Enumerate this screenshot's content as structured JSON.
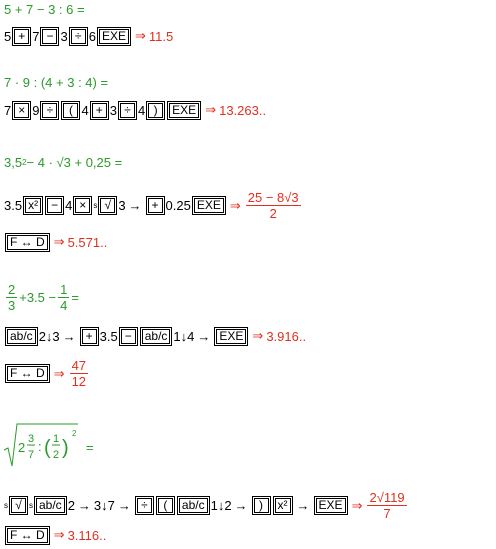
{
  "ex1": {
    "expr": "5 + 7 − 3 : 6 =",
    "keys": [
      "5",
      "+",
      "7",
      "−",
      "3",
      "÷",
      "6",
      "EXE"
    ],
    "result": "11.5"
  },
  "ex2": {
    "expr": "7 · 9 : (4 + 3 : 4) =",
    "keys": [
      "7",
      "×",
      "9",
      "÷",
      "(",
      "4",
      "+",
      "3",
      "÷",
      "4",
      ")",
      "EXE"
    ],
    "result": "13.263.."
  },
  "ex3": {
    "expr_a": "3,5",
    "expr_b": " − 4 · √3 + 0,25 =",
    "keys_a": [
      "3.5",
      "x²",
      "−",
      "4",
      "×",
      "s",
      "√",
      "3",
      "→",
      "+",
      "0.25",
      "EXE"
    ],
    "result_num": "25 − 8√3",
    "result_den": "2",
    "toggle": "F ↔ D",
    "toggle_result": "5.571.."
  },
  "ex4": {
    "frac1_num": "2",
    "frac1_den": "3",
    "mid": "+3.5 −",
    "frac2_num": "1",
    "frac2_den": "4",
    "eq": "=",
    "keys": [
      "ab/c",
      "2",
      "↓",
      "3",
      "→",
      "+",
      "3.5",
      "−",
      "ab/c",
      "1",
      "↓",
      "4",
      "→",
      "EXE"
    ],
    "result": "3.916..",
    "toggle": "F ↔ D",
    "toggle_num": "47",
    "toggle_den": "12"
  },
  "ex5": {
    "keys": [
      "s",
      "√",
      "s",
      "ab/c",
      "2",
      "→",
      "3",
      "↓",
      "7",
      "→",
      "÷",
      "(",
      "ab/c",
      "1",
      "↓",
      "2",
      "→",
      ")",
      "x²",
      "→",
      "EXE"
    ],
    "result_num": "2√119",
    "result_den": "7",
    "toggle": "F ↔ D",
    "toggle_result": "3.116.."
  }
}
